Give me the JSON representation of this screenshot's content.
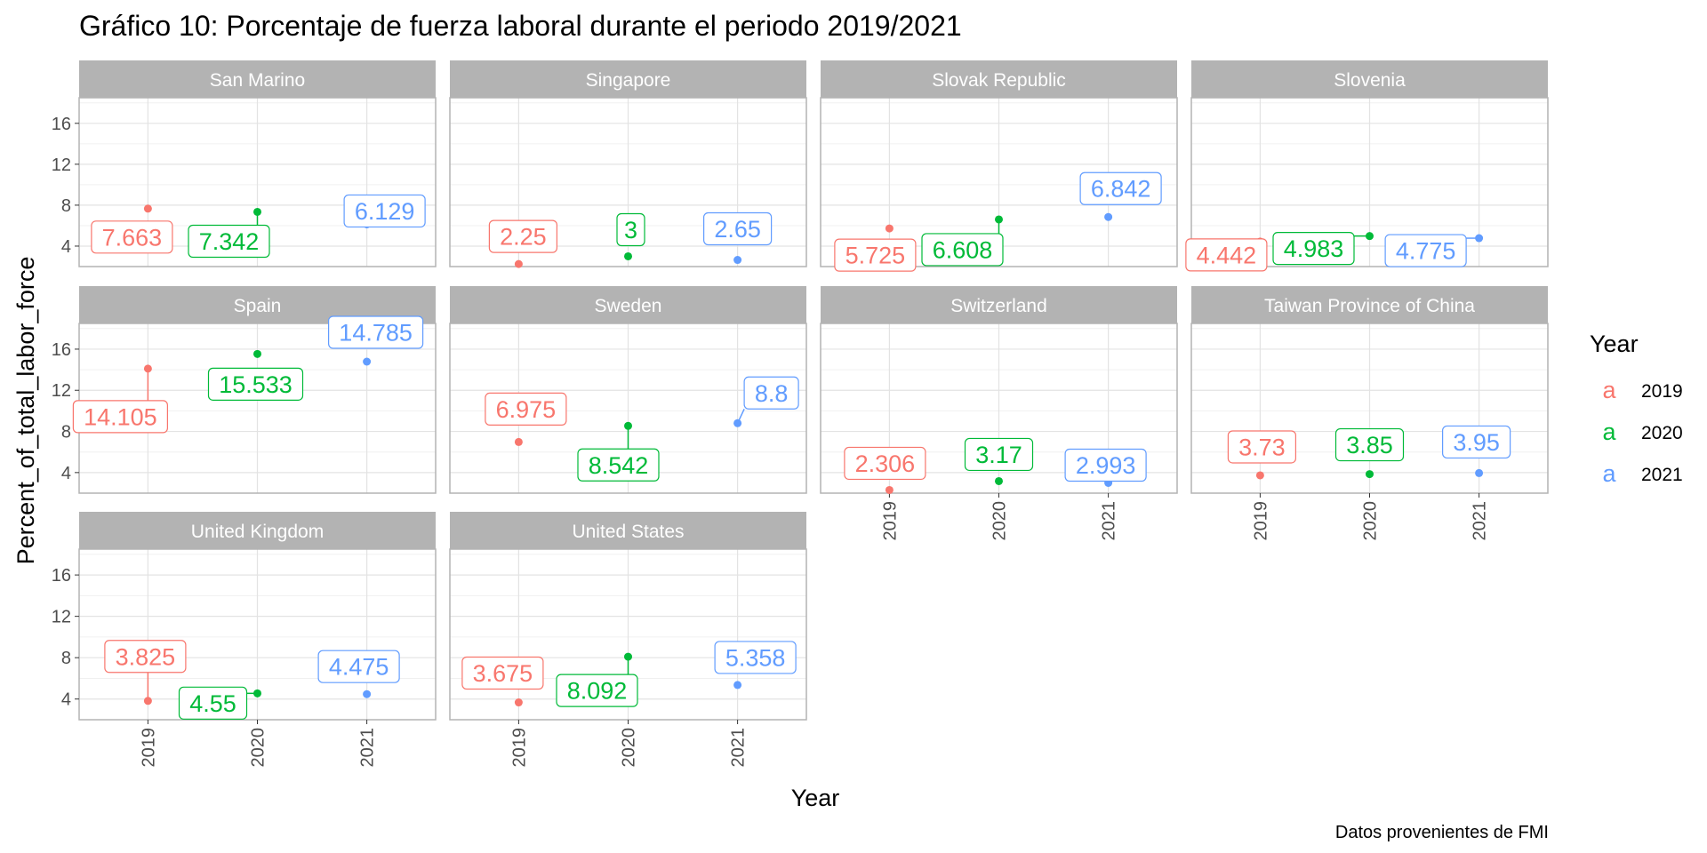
{
  "chart_data": {
    "type": "scatter",
    "title": "Gráfico 10: Porcentaje de fuerza laboral durante el periodo 2019/2021",
    "xlabel": "Year",
    "ylabel": "Percent_of_total_labor_force",
    "caption": "Datos provenientes de FMI",
    "x": [
      "2019",
      "2020",
      "2021"
    ],
    "y_ticks": [
      "4",
      "8",
      "12",
      "16"
    ],
    "ylim": [
      2,
      18.5
    ],
    "grid": true,
    "legend": {
      "title": "Year",
      "position": "right",
      "key_glyph": "a",
      "entries": [
        {
          "label": "2019",
          "color": "#F8766D"
        },
        {
          "label": "2020",
          "color": "#00BA38"
        },
        {
          "label": "2021",
          "color": "#619CFF"
        }
      ]
    },
    "panels": [
      {
        "name": "San Marino",
        "values": [
          7.663,
          7.342,
          6.129
        ],
        "labels": [
          "7.663",
          "7.342",
          "6.129"
        ]
      },
      {
        "name": "Singapore",
        "values": [
          2.25,
          3,
          2.65
        ],
        "labels": [
          "2.25",
          "3",
          "2.65"
        ]
      },
      {
        "name": "Slovak Republic",
        "values": [
          5.725,
          6.608,
          6.842
        ],
        "labels": [
          "5.725",
          "6.608",
          "6.842"
        ]
      },
      {
        "name": "Slovenia",
        "values": [
          4.442,
          4.983,
          4.775
        ],
        "labels": [
          "4.442",
          "4.983",
          "4.775"
        ]
      },
      {
        "name": "Spain",
        "values": [
          14.105,
          15.533,
          14.785
        ],
        "labels": [
          "14.105",
          "15.533",
          "14.785"
        ]
      },
      {
        "name": "Sweden",
        "values": [
          6.975,
          8.542,
          8.8
        ],
        "labels": [
          "6.975",
          "8.542",
          "8.8"
        ]
      },
      {
        "name": "Switzerland",
        "values": [
          2.306,
          3.17,
          2.993
        ],
        "labels": [
          "2.306",
          "3.17",
          "2.993"
        ]
      },
      {
        "name": "Taiwan Province of China",
        "values": [
          3.73,
          3.85,
          3.95
        ],
        "labels": [
          "3.73",
          "3.85",
          "3.95"
        ]
      },
      {
        "name": "United Kingdom",
        "values": [
          3.825,
          4.55,
          4.475
        ],
        "labels": [
          "3.825",
          "4.55",
          "4.475"
        ]
      },
      {
        "name": "United States",
        "values": [
          3.675,
          8.092,
          5.358
        ],
        "labels": [
          "3.675",
          "8.092",
          "5.358"
        ]
      }
    ]
  }
}
